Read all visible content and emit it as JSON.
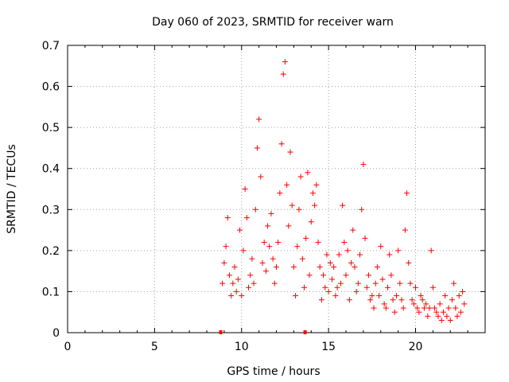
{
  "chart_data": {
    "type": "scatter",
    "title": "Day 060 of 2023, SRMTID for receiver warn",
    "xlabel": "GPS time / hours",
    "ylabel": "SRMTID / TECUs",
    "xlim": [
      0,
      24
    ],
    "ylim": [
      0,
      0.7
    ],
    "x_ticks": [
      "0",
      "5",
      "10",
      "15",
      "20"
    ],
    "x_tick_values": [
      0,
      5,
      10,
      15,
      20
    ],
    "y_ticks": [
      "0",
      "0.1",
      "0.2",
      "0.3",
      "0.4",
      "0.5",
      "0.6",
      "0.7"
    ],
    "y_tick_values": [
      0,
      0.1,
      0.2,
      0.3,
      0.4,
      0.5,
      0.6,
      0.7
    ],
    "grid": true,
    "marker": "+",
    "color": "#ff0000",
    "series": [
      {
        "name": "SRMTID",
        "x": [
          8.9,
          9.0,
          9.1,
          9.2,
          9.3,
          9.4,
          9.5,
          9.6,
          9.7,
          9.8,
          9.9,
          10.0,
          10.1,
          10.2,
          10.3,
          10.4,
          10.5,
          10.6,
          10.7,
          10.8,
          10.9,
          11.0,
          11.1,
          11.2,
          11.3,
          11.4,
          11.5,
          11.6,
          11.7,
          11.8,
          11.9,
          12.0,
          12.1,
          12.2,
          12.3,
          12.4,
          12.5,
          12.6,
          12.7,
          12.8,
          12.9,
          13.0,
          13.1,
          13.2,
          13.3,
          13.4,
          13.5,
          13.6,
          13.7,
          13.8,
          13.9,
          14.0,
          14.1,
          14.2,
          14.3,
          14.4,
          14.5,
          14.6,
          14.7,
          14.8,
          14.9,
          15.0,
          15.1,
          15.2,
          15.3,
          15.4,
          15.5,
          15.6,
          15.7,
          15.8,
          15.9,
          16.0,
          16.1,
          16.2,
          16.3,
          16.4,
          16.5,
          16.6,
          16.7,
          16.8,
          16.9,
          17.0,
          17.1,
          17.2,
          17.3,
          17.4,
          17.5,
          17.6,
          17.7,
          17.8,
          17.9,
          18.0,
          18.1,
          18.2,
          18.3,
          18.4,
          18.5,
          18.6,
          18.7,
          18.8,
          18.9,
          19.0,
          19.1,
          19.2,
          19.3,
          19.4,
          19.5,
          19.6,
          19.7,
          19.8,
          19.9,
          20.0,
          20.1,
          20.2,
          20.3,
          20.4,
          20.5,
          20.6,
          20.7,
          20.8,
          20.9,
          21.0,
          21.1,
          21.2,
          21.3,
          21.4,
          21.5,
          21.6,
          21.7,
          21.8,
          21.9,
          22.0,
          22.1,
          22.2,
          22.3,
          22.4,
          22.5,
          22.6,
          22.7,
          22.8
        ],
        "y": [
          0.12,
          0.17,
          0.21,
          0.28,
          0.14,
          0.09,
          0.12,
          0.16,
          0.1,
          0.13,
          0.25,
          0.09,
          0.2,
          0.35,
          0.28,
          0.11,
          0.14,
          0.18,
          0.12,
          0.3,
          0.45,
          0.52,
          0.38,
          0.17,
          0.22,
          0.15,
          0.26,
          0.21,
          0.29,
          0.18,
          0.12,
          0.16,
          0.22,
          0.34,
          0.46,
          0.63,
          0.66,
          0.36,
          0.26,
          0.44,
          0.31,
          0.16,
          0.09,
          0.21,
          0.3,
          0.38,
          0.18,
          0.11,
          0.23,
          0.39,
          0.14,
          0.27,
          0.34,
          0.31,
          0.36,
          0.22,
          0.16,
          0.08,
          0.14,
          0.11,
          0.19,
          0.1,
          0.17,
          0.13,
          0.16,
          0.09,
          0.11,
          0.19,
          0.12,
          0.31,
          0.22,
          0.14,
          0.2,
          0.08,
          0.17,
          0.25,
          0.16,
          0.1,
          0.12,
          0.19,
          0.3,
          0.41,
          0.23,
          0.11,
          0.14,
          0.08,
          0.09,
          0.06,
          0.12,
          0.16,
          0.09,
          0.21,
          0.13,
          0.07,
          0.06,
          0.11,
          0.19,
          0.14,
          0.08,
          0.05,
          0.09,
          0.2,
          0.12,
          0.08,
          0.06,
          0.25,
          0.34,
          0.17,
          0.12,
          0.08,
          0.07,
          0.11,
          0.06,
          0.05,
          0.09,
          0.08,
          0.06,
          0.07,
          0.04,
          0.06,
          0.2,
          0.11,
          0.06,
          0.05,
          0.04,
          0.07,
          0.03,
          0.05,
          0.09,
          0.04,
          0.06,
          0.03,
          0.08,
          0.12,
          0.06,
          0.04,
          0.09,
          0.05,
          0.1,
          0.07
        ]
      }
    ],
    "markers_on_axis_x": [
      8.8,
      13.65
    ]
  }
}
